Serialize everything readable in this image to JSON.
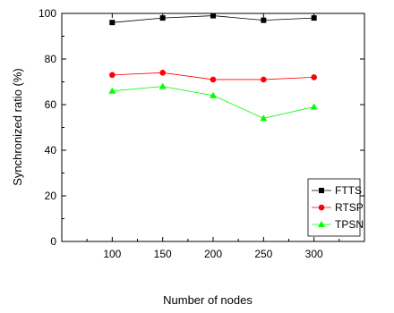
{
  "chart_data": {
    "type": "line",
    "title": "",
    "xlabel": "Number of nodes",
    "ylabel": "Synchronized ratio (%)",
    "x": [
      100,
      150,
      200,
      250,
      300
    ],
    "xlim": [
      50,
      350
    ],
    "ylim": [
      0,
      100
    ],
    "x_ticks": [
      "100",
      "150",
      "200",
      "250",
      "300"
    ],
    "y_ticks": [
      "0",
      "20",
      "40",
      "60",
      "80",
      "100"
    ],
    "grid": false,
    "legend_position": "bottom-right",
    "series": [
      {
        "name": "FTTS",
        "values": [
          96,
          98,
          99,
          97,
          98
        ],
        "color": "#000000",
        "marker": "square"
      },
      {
        "name": "RTSP",
        "values": [
          73,
          74,
          71,
          71,
          72
        ],
        "color": "#ff0000",
        "marker": "circle"
      },
      {
        "name": "TPSN",
        "values": [
          66,
          68,
          64,
          54,
          59
        ],
        "color": "#00ff00",
        "marker": "triangle"
      }
    ]
  }
}
